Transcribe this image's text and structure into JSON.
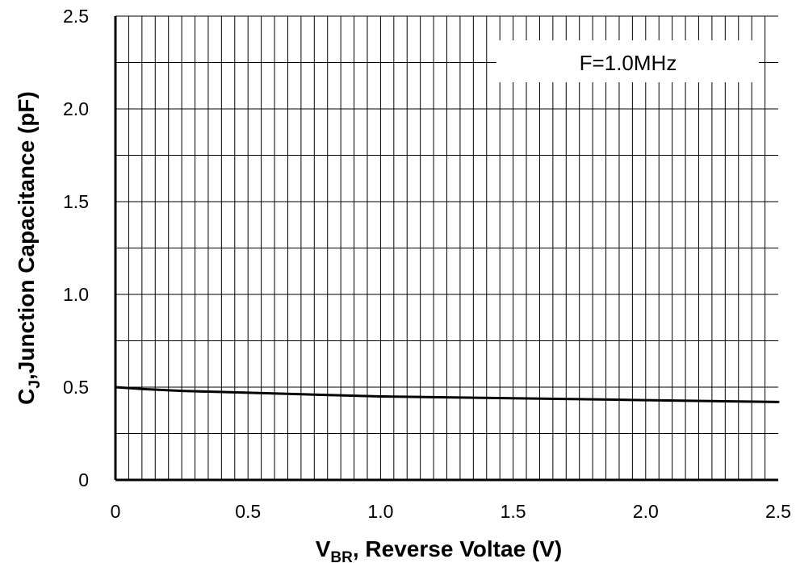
{
  "chart_data": {
    "type": "line",
    "annotation": "F=1.0MHz",
    "xlabel": {
      "main": "V",
      "sub": "BR",
      "rest": ", Reverse Voltae (V)"
    },
    "ylabel": {
      "main": "C",
      "sub": "J",
      "rest": ",Junction Capacitance (pF)"
    },
    "xlim": [
      0,
      2.5
    ],
    "ylim": [
      0,
      2.5
    ],
    "x_ticks": [
      "0",
      "0.5",
      "1.0",
      "1.5",
      "2.0",
      "2.5"
    ],
    "y_ticks": [
      "0",
      "0.5",
      "1.0",
      "1.5",
      "2.0",
      "2.5"
    ],
    "grid": true,
    "series": [
      {
        "x": [
          0,
          0.1,
          0.25,
          0.5,
          0.75,
          1.0,
          1.25,
          1.5,
          1.75,
          2.0,
          2.25,
          2.5
        ],
        "y": [
          0.5,
          0.49,
          0.48,
          0.47,
          0.46,
          0.45,
          0.445,
          0.44,
          0.435,
          0.43,
          0.425,
          0.42
        ]
      }
    ],
    "colors": {
      "line": "#000000",
      "grid": "#000000",
      "background": "#ffffff"
    }
  }
}
